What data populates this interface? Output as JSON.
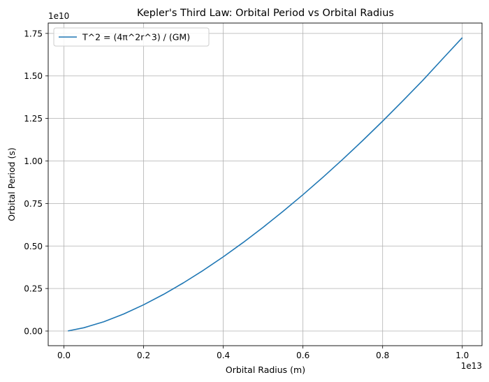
{
  "chart_data": {
    "type": "line",
    "title": "Kepler's Third Law: Orbital Period vs Orbital Radius",
    "xlabel": "Orbital Radius (m)",
    "ylabel": "Orbital Period (s)",
    "x_scale_label": "1e13",
    "y_scale_label": "1e10",
    "xlim": [
      -0.0395,
      1.0495
    ],
    "ylim": [
      -0.0862,
      1.811
    ],
    "x_ticks": [
      0.0,
      0.2,
      0.4,
      0.6,
      0.8,
      1.0
    ],
    "x_tick_labels": [
      "0.0",
      "0.2",
      "0.4",
      "0.6",
      "0.8",
      "1.0"
    ],
    "y_ticks": [
      0.0,
      0.25,
      0.5,
      0.75,
      1.0,
      1.25,
      1.5,
      1.75
    ],
    "y_tick_labels": [
      "0.00",
      "0.25",
      "0.50",
      "0.75",
      "1.00",
      "1.25",
      "1.50",
      "1.75"
    ],
    "grid": true,
    "legend_position": "top-left",
    "series": [
      {
        "name": "T^2 = (4π^2r^3) / (GM)",
        "color": "#1f77b4",
        "x": [
          0.01,
          0.05,
          0.1,
          0.15,
          0.2,
          0.25,
          0.3,
          0.35,
          0.4,
          0.45,
          0.5,
          0.55,
          0.6,
          0.65,
          0.7,
          0.75,
          0.8,
          0.85,
          0.9,
          0.95,
          1.0
        ],
        "y": [
          0.0005,
          0.0193,
          0.0546,
          0.1002,
          0.1543,
          0.2156,
          0.2834,
          0.3572,
          0.4364,
          0.5207,
          0.6099,
          0.7036,
          0.8016,
          0.9038,
          1.01,
          1.12,
          1.234,
          1.352,
          1.472,
          1.599,
          1.725
        ]
      }
    ]
  }
}
